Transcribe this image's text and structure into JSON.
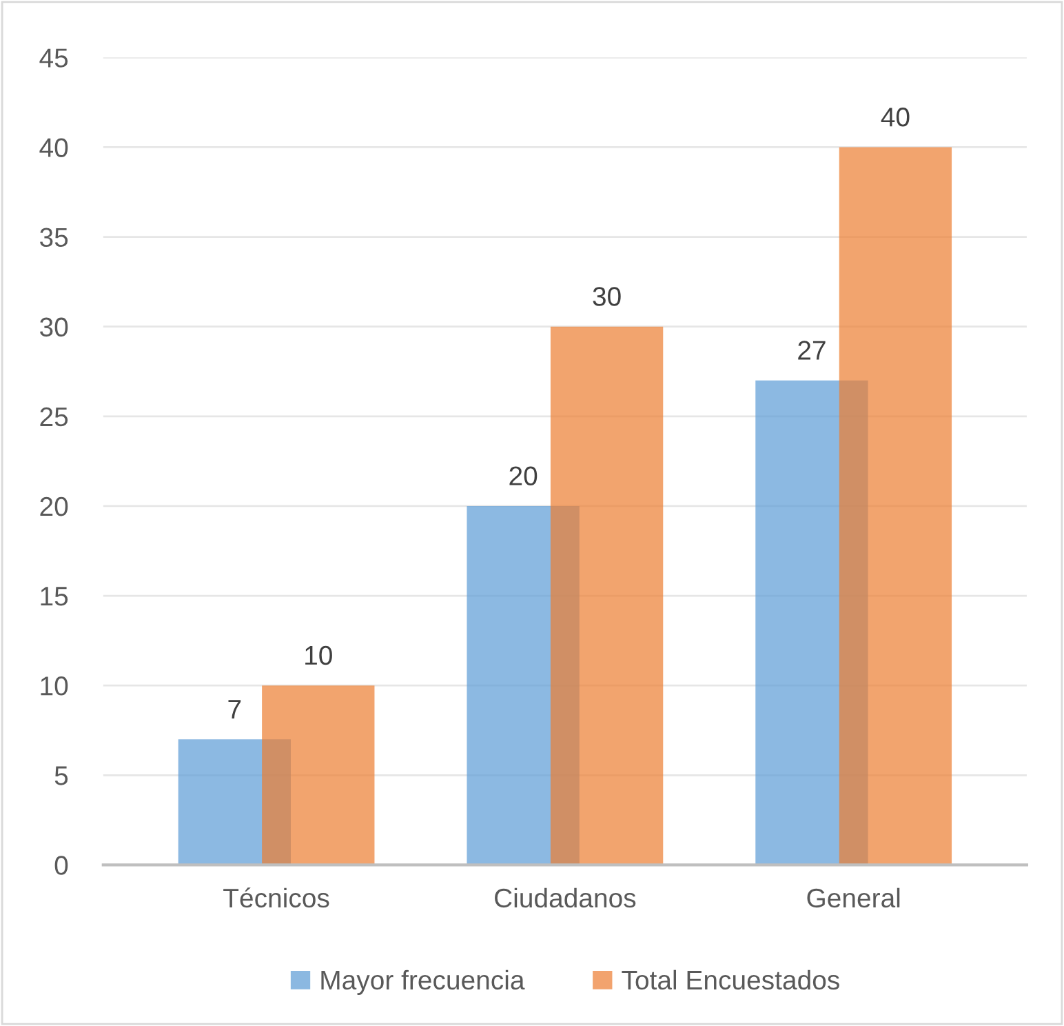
{
  "chart_data": {
    "type": "bar",
    "categories": [
      "Técnicos",
      "Ciudadanos",
      "General"
    ],
    "series": [
      {
        "name": "Mayor frecuencia",
        "color": "#5b9bd5",
        "values": [
          7,
          20,
          27
        ]
      },
      {
        "name": "Total Encuestados",
        "color": "#ed7d31",
        "values": [
          10,
          30,
          40
        ]
      }
    ],
    "ylim": [
      0,
      45
    ],
    "yticks": [
      0,
      5,
      10,
      15,
      20,
      25,
      30,
      35,
      40,
      45
    ],
    "grid": "y",
    "legend": "bottom",
    "data_labels": true
  }
}
